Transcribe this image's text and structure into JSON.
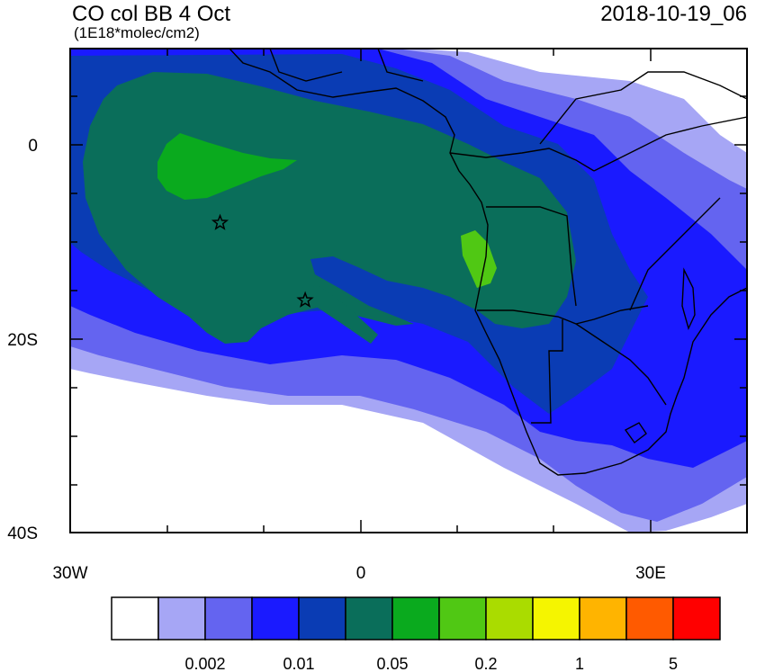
{
  "header": {
    "title": "CO col BB 4 Oct",
    "units": "(1E18*molec/cm2)",
    "datetime": "2018-10-19_06"
  },
  "axes": {
    "y_ticks": [
      "0",
      "20S",
      "40S"
    ],
    "x_ticks": [
      "30W",
      "0",
      "30E"
    ]
  },
  "markers": [
    {
      "name": "star-marker-1",
      "lon": -14.5,
      "lat": -8
    },
    {
      "name": "star-marker-2",
      "lon": -5.7,
      "lat": -16
    }
  ],
  "colorbar": {
    "colors": [
      "#ffffff",
      "#a6a6f5",
      "#6464f0",
      "#1a1aff",
      "#0a3cb4",
      "#0a6e5a",
      "#0aaa1e",
      "#50c814",
      "#aadc00",
      "#f5f500",
      "#ffb400",
      "#ff5a00",
      "#ff0000"
    ],
    "labels": [
      "0.002",
      "0.01",
      "0.05",
      "0.2",
      "1",
      "5"
    ]
  }
}
